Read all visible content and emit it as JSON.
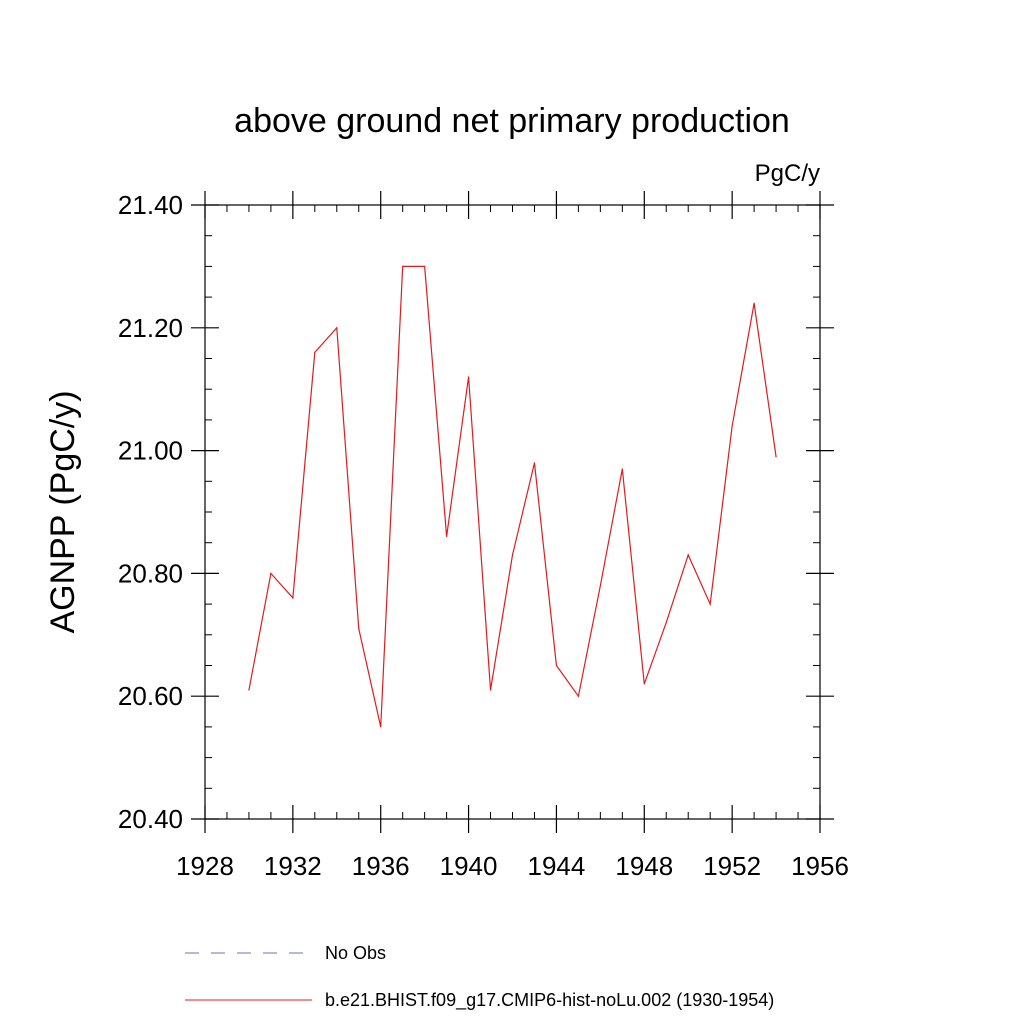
{
  "chart_data": {
    "type": "line",
    "title": "above ground net primary production",
    "units": "PgC/y",
    "ylabel": "AGNPP  (PgC/y)",
    "xlabel": "",
    "xlim": [
      1928,
      1956
    ],
    "ylim": [
      20.4,
      21.4
    ],
    "x_major_ticks": [
      1928,
      1932,
      1936,
      1940,
      1944,
      1948,
      1952,
      1956
    ],
    "x_minor_step": 1,
    "y_major_ticks": [
      "20.40",
      "20.60",
      "20.80",
      "21.00",
      "21.20",
      "21.40"
    ],
    "y_minor_step": 0.05,
    "grid": false,
    "legend_position": "bottom",
    "series": [
      {
        "name": "No Obs",
        "color": "#6f6fb3",
        "style": "dashed",
        "x": [],
        "values": []
      },
      {
        "name": "b.e21.BHIST.f09_g17.CMIP6-hist-noLu.002 (1930-1954)",
        "color": "#e41a1c",
        "style": "solid",
        "x": [
          1930,
          1931,
          1932,
          1933,
          1934,
          1935,
          1936,
          1937,
          1938,
          1939,
          1940,
          1941,
          1942,
          1943,
          1944,
          1945,
          1946,
          1947,
          1948,
          1949,
          1950,
          1951,
          1952,
          1953,
          1954
        ],
        "values": [
          20.61,
          20.8,
          20.76,
          21.16,
          21.2,
          20.71,
          20.55,
          21.3,
          21.3,
          20.86,
          21.12,
          20.61,
          20.83,
          20.98,
          20.65,
          20.6,
          20.78,
          20.97,
          20.62,
          20.72,
          20.83,
          20.75,
          21.04,
          21.24,
          20.99
        ]
      }
    ]
  }
}
